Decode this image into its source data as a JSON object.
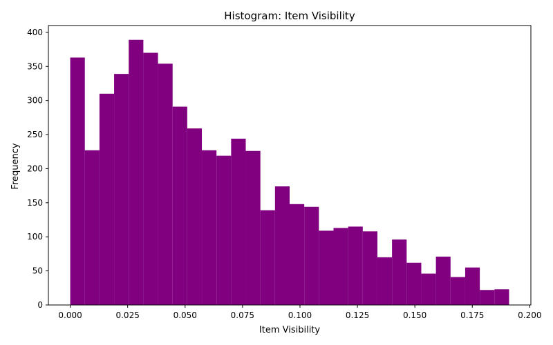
{
  "chart_data": {
    "type": "histogram",
    "title": "Histogram: Item Visibility",
    "xlabel": "Item Visibility",
    "ylabel": "Frequency",
    "xlim": [
      -0.0095,
      0.2005
    ],
    "ylim": [
      0,
      410
    ],
    "xticks": [
      "0.000",
      "0.025",
      "0.050",
      "0.075",
      "0.100",
      "0.125",
      "0.150",
      "0.175",
      "0.200"
    ],
    "xtick_values": [
      0,
      0.025,
      0.05,
      0.075,
      0.1,
      0.125,
      0.15,
      0.175,
      0.2
    ],
    "yticks": [
      "0",
      "50",
      "100",
      "150",
      "200",
      "250",
      "300",
      "350",
      "400"
    ],
    "ytick_values": [
      0,
      50,
      100,
      150,
      200,
      250,
      300,
      350,
      400
    ],
    "bin_start": 0.0,
    "bin_end": 0.191,
    "counts": [
      363,
      227,
      310,
      339,
      389,
      370,
      354,
      291,
      259,
      227,
      219,
      244,
      226,
      139,
      174,
      148,
      144,
      109,
      113,
      115,
      108,
      70,
      96,
      62,
      46,
      71,
      41,
      55,
      22,
      23
    ],
    "bar_color": "#800080",
    "grid": false
  }
}
